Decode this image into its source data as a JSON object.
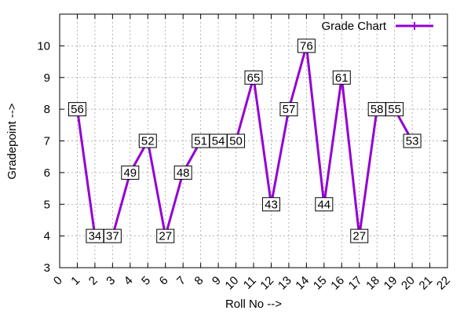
{
  "chart_data": {
    "type": "line",
    "title": "",
    "xlabel": "Roll No -->",
    "ylabel": "Gradepoint -->",
    "xlim": [
      0,
      22
    ],
    "ylim": [
      3,
      11
    ],
    "x_ticks": [
      "0",
      "1",
      "2",
      "3",
      "4",
      "5",
      "6",
      "7",
      "8",
      "9",
      "10",
      "11",
      "12",
      "13",
      "14",
      "15",
      "16",
      "17",
      "18",
      "19",
      "20",
      "21",
      "22"
    ],
    "y_ticks": [
      "3",
      "4",
      "5",
      "6",
      "7",
      "8",
      "9",
      "10"
    ],
    "grid": true,
    "legend_position": "top-right",
    "series": [
      {
        "name": "Grade Chart",
        "color": "#9400d3",
        "points": [
          {
            "x": 1,
            "y": 8,
            "label": "56"
          },
          {
            "x": 2,
            "y": 4,
            "label": "34"
          },
          {
            "x": 3,
            "y": 4,
            "label": "37"
          },
          {
            "x": 4,
            "y": 6,
            "label": "49"
          },
          {
            "x": 5,
            "y": 7,
            "label": "52"
          },
          {
            "x": 6,
            "y": 4,
            "label": "27"
          },
          {
            "x": 7,
            "y": 6,
            "label": "48"
          },
          {
            "x": 8,
            "y": 7,
            "label": "51"
          },
          {
            "x": 9,
            "y": 7,
            "label": "54"
          },
          {
            "x": 10,
            "y": 7,
            "label": "50"
          },
          {
            "x": 11,
            "y": 9,
            "label": "65"
          },
          {
            "x": 12,
            "y": 5,
            "label": "43"
          },
          {
            "x": 13,
            "y": 8,
            "label": "57"
          },
          {
            "x": 14,
            "y": 10,
            "label": "76"
          },
          {
            "x": 15,
            "y": 5,
            "label": "44"
          },
          {
            "x": 16,
            "y": 9,
            "label": "61"
          },
          {
            "x": 17,
            "y": 4,
            "label": "27"
          },
          {
            "x": 18,
            "y": 8,
            "label": "58"
          },
          {
            "x": 19,
            "y": 8,
            "label": "55"
          },
          {
            "x": 20,
            "y": 7,
            "label": "53"
          }
        ]
      }
    ]
  }
}
